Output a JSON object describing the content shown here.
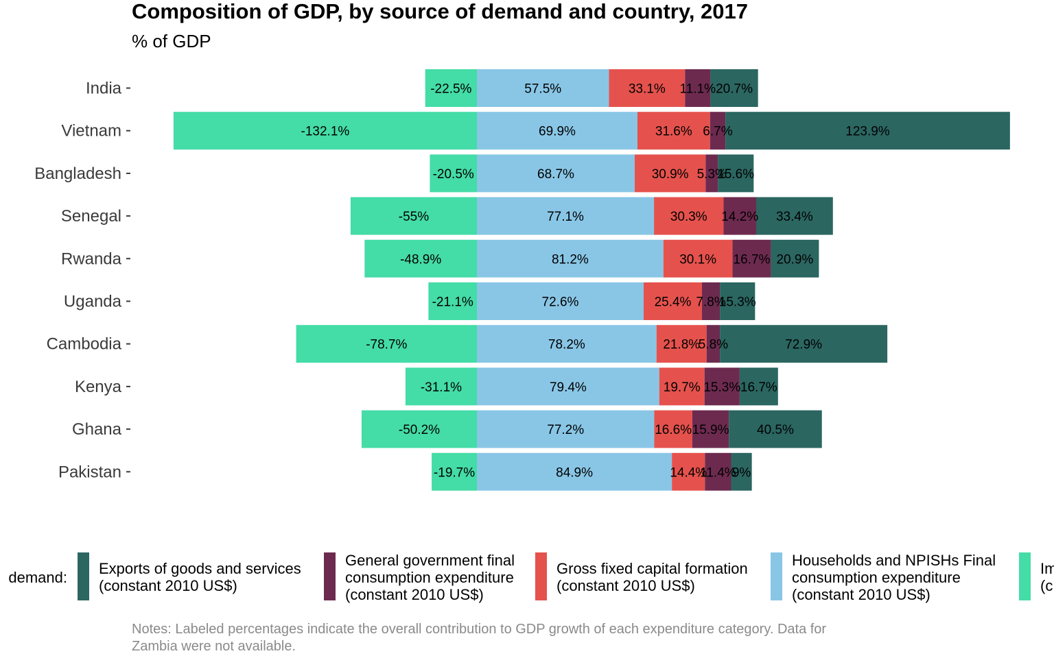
{
  "chart_data": {
    "type": "bar",
    "orientation": "horizontal",
    "stacked": true,
    "title": "Composition of GDP, by source of demand and country, 2017",
    "subtitle": "% of GDP",
    "categories": [
      "India",
      "Vietnam",
      "Bangladesh",
      "Senegal",
      "Rwanda",
      "Uganda",
      "Cambodia",
      "Kenya",
      "Ghana",
      "Pakistan"
    ],
    "series": [
      {
        "name": "Exports of goods and services (constant 2010 US$)",
        "name_lines": [
          "Exports of goods and services",
          "(constant 2010 US$)"
        ],
        "color": "#2b6661",
        "values": [
          20.7,
          123.9,
          15.6,
          33.4,
          20.9,
          15.3,
          72.9,
          16.7,
          40.5,
          9
        ],
        "labels": [
          "20.7%",
          "123.9%",
          "15.6%",
          "33.4%",
          "20.9%",
          "15.3%",
          "72.9%",
          "16.7%",
          "40.5%",
          "9%"
        ]
      },
      {
        "name": "General government final consumption expenditure (constant 2010 US$)",
        "name_lines": [
          "General government final",
          "consumption expenditure",
          "(constant 2010 US$)"
        ],
        "color": "#6d2a4f",
        "values": [
          11.1,
          6.7,
          5.3,
          14.2,
          16.7,
          7.8,
          5.8,
          15.3,
          15.9,
          11.4
        ],
        "labels": [
          "11.1%",
          "6.7%",
          "5.3%",
          "14.2%",
          "16.7%",
          "7.8%",
          "5.8%",
          "15.3%",
          "15.9%",
          "11.4%"
        ]
      },
      {
        "name": "Gross fixed capital formation (constant 2010 US$)",
        "name_lines": [
          "Gross fixed capital formation",
          "(constant 2010 US$)"
        ],
        "color": "#e5524d",
        "values": [
          33.1,
          31.6,
          30.9,
          30.3,
          30.1,
          25.4,
          21.8,
          19.7,
          16.6,
          14.4
        ],
        "labels": [
          "33.1%",
          "31.6%",
          "30.9%",
          "30.3%",
          "30.1%",
          "25.4%",
          "21.8%",
          "19.7%",
          "16.6%",
          "14.4%"
        ]
      },
      {
        "name": "Households and NPISHs Final consumption expenditure (constant 2010 US$)",
        "name_lines": [
          "Households and NPISHs Final",
          "consumption expenditure",
          "(constant 2010 US$)"
        ],
        "color": "#89c6e6",
        "values": [
          57.5,
          69.9,
          68.7,
          77.1,
          81.2,
          72.6,
          78.2,
          79.4,
          77.2,
          84.9
        ],
        "labels": [
          "57.5%",
          "69.9%",
          "68.7%",
          "77.1%",
          "81.2%",
          "72.6%",
          "78.2%",
          "79.4%",
          "77.2%",
          "84.9%"
        ]
      },
      {
        "name": "Imports (partially visible)",
        "name_lines": [
          "Im",
          "(c"
        ],
        "color": "#44dca7",
        "values": [
          -22.5,
          -132.1,
          -20.5,
          -55,
          -48.9,
          -21.1,
          -78.7,
          -31.1,
          -50.2,
          -19.7
        ],
        "labels": [
          "-22.5%",
          "-132.1%",
          "-20.5%",
          "-55%",
          "-48.9%",
          "-21.1%",
          "-78.7%",
          "-31.1%",
          "-50.2%",
          "-19.7%"
        ]
      }
    ],
    "stack_order_right": [
      "Households and NPISHs Final consumption expenditure (constant 2010 US$)",
      "Gross fixed capital formation (constant 2010 US$)",
      "General government final consumption expenditure (constant 2010 US$)",
      "Exports of goods and services (constant 2010 US$)"
    ],
    "xlim": [
      -132.1,
      232.1
    ],
    "grid": false,
    "legend": {
      "position": "bottom",
      "title": "demand:"
    },
    "note_lines": [
      "Notes: Labeled percentages indicate the overall contribution to GDP growth of each expenditure category. Data for",
      "Zambia were not available."
    ]
  }
}
